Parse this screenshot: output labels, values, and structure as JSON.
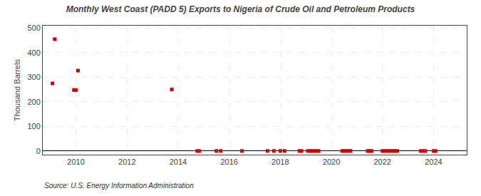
{
  "chart_data": {
    "type": "scatter",
    "title": "Monthly West Coast (PADD 5) Exports to Nigeria of Crude Oil and Petroleum Products",
    "ylabel": "Thousand Barrels",
    "annotations": [
      "Source: U.S. Energy Information Administration"
    ],
    "color": "#cc0000",
    "marker": "square",
    "grid": true,
    "xlim": [
      2008.7,
      2025.3
    ],
    "ylim": [
      -15,
      510
    ],
    "xticks": [
      2010,
      2012,
      2014,
      2016,
      2018,
      2020,
      2022,
      2024
    ],
    "yticks": [
      0,
      100,
      200,
      300,
      400,
      500
    ],
    "x": [
      2009.08,
      2009.17,
      2009.92,
      2010.0,
      2010.08,
      2013.75,
      2014.75,
      2014.83,
      2015.5,
      2015.67,
      2016.5,
      2017.5,
      2017.75,
      2018.0,
      2018.17,
      2018.75,
      2018.83,
      2019.08,
      2019.17,
      2019.25,
      2019.33,
      2019.42,
      2019.5,
      2020.42,
      2020.5,
      2020.58,
      2020.67,
      2020.75,
      2021.42,
      2021.5,
      2021.58,
      2022.0,
      2022.08,
      2022.17,
      2022.25,
      2022.33,
      2022.42,
      2022.5,
      2022.58,
      2023.5,
      2023.58,
      2023.67,
      2024.0,
      2024.08
    ],
    "values": [
      275,
      455,
      248,
      248,
      327,
      250,
      0,
      0,
      0,
      0,
      0,
      0,
      0,
      0,
      0,
      0,
      0,
      0,
      0,
      0,
      0,
      0,
      0,
      0,
      0,
      0,
      0,
      0,
      0,
      0,
      0,
      0,
      0,
      0,
      0,
      0,
      0,
      0,
      0,
      0,
      0,
      0,
      0,
      0
    ]
  }
}
